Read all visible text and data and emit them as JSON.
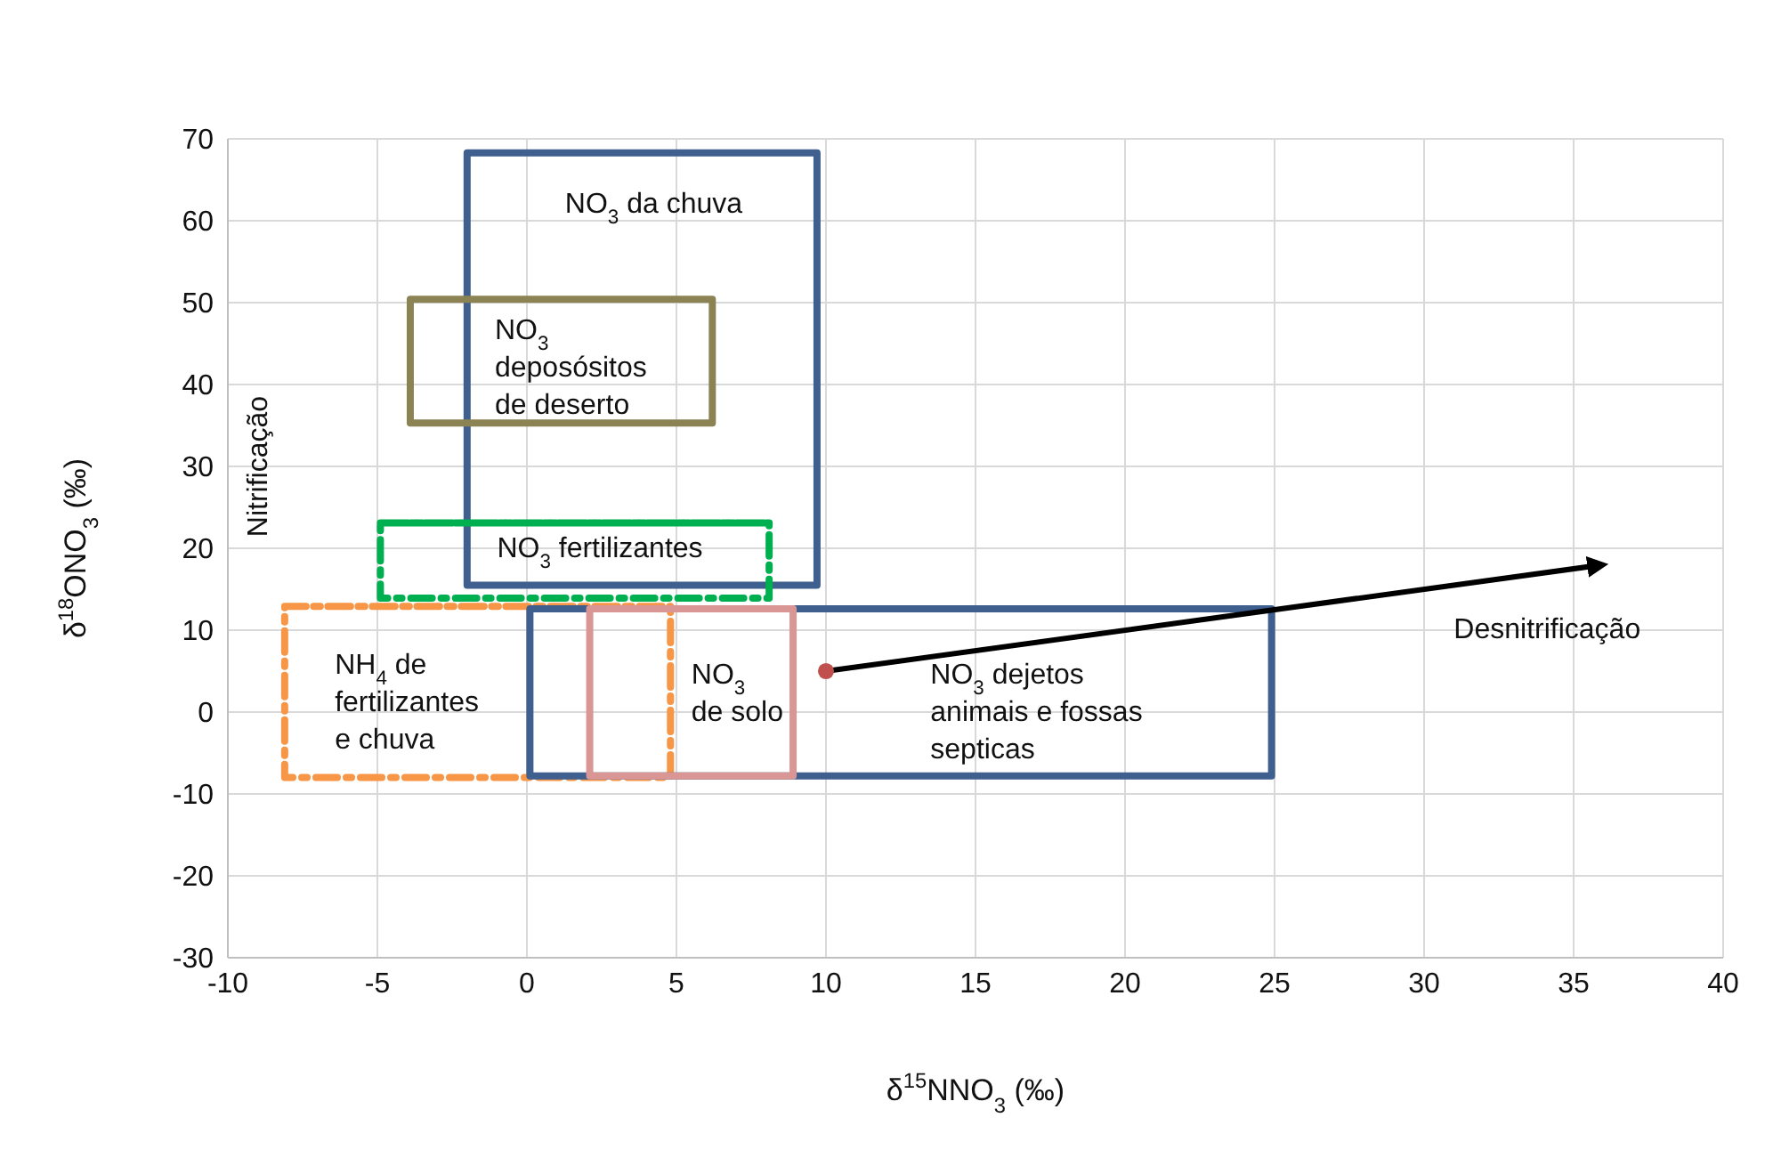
{
  "chart_data": {
    "type": "line",
    "xlabel": "δ$^{15}$NNO$_{3}$ (‰)",
    "ylabel": "δ$^{18}$ONO$_{3}$ (‰)",
    "xlim": [
      -10,
      40
    ],
    "xticks": [
      -10,
      -5,
      0,
      5,
      10,
      15,
      20,
      25,
      30,
      35,
      40
    ],
    "ylim": [
      -30,
      70
    ],
    "yticks": [
      -30,
      -20,
      -10,
      0,
      10,
      20,
      30,
      40,
      50,
      60,
      70
    ],
    "grid": true,
    "legend": false,
    "marker": "none",
    "series": [
      {
        "name": "NO$_{3}$ da chuva",
        "color": "#3f5f8f",
        "line_style": "solid",
        "x": [
          -2,
          9.7,
          9.7,
          -2,
          -2,
          9.7
        ],
        "values": [
          68.3,
          68.3,
          15.5,
          15.5,
          68.3,
          68.3
        ]
      },
      {
        "name": "NO$_{3}$\ndeposósitos\nde  deserto",
        "color": "#8c8354",
        "line_style": "solid",
        "x": [
          -3.9,
          6.2,
          6.2,
          -3.9,
          -3.9,
          6.2
        ],
        "values": [
          50.4,
          50.4,
          35.3,
          35.3,
          50.4,
          50.4
        ]
      },
      {
        "name": "NO$_{3}$ fertilizantes",
        "color": "#00b050",
        "line_style": "dashed",
        "x": [
          -4.9,
          8.1,
          8.1,
          -4.9,
          -4.9,
          8.1
        ],
        "values": [
          23.1,
          23.1,
          13.9,
          13.9,
          23.1,
          23.1
        ]
      },
      {
        "name": "NH$_{4}$ de\nfertilizantes\ne chuva",
        "color": "#f79646",
        "line_style": "dashed",
        "x": [
          -8.1,
          4.8,
          4.8,
          -8.1,
          -8.1,
          4.8
        ],
        "values": [
          12.9,
          12.9,
          -8,
          -8,
          12.9,
          12.9
        ]
      },
      {
        "name": "NO$_{3}$ dejetos\nanimais e fossas\nsepticas",
        "color": "#3f5f8f",
        "line_style": "solid",
        "x": [
          0.1,
          24.9,
          24.9,
          0.1,
          0.1,
          24.9
        ],
        "values": [
          12.6,
          12.6,
          -7.8,
          -7.8,
          12.6,
          12.6
        ]
      },
      {
        "name": "NO$_{3}$\nde solo",
        "color": "#d99694",
        "line_style": "solid",
        "x": [
          2.1,
          8.9,
          8.9,
          2.1,
          2.1,
          8.9
        ],
        "values": [
          12.6,
          12.6,
          -7.8,
          -7.8,
          12.6,
          12.6
        ]
      },
      {
        "name": "Desnitrificação",
        "color": "#000000",
        "line_style": "solid",
        "x": [
          10,
          35.6
        ],
        "values": [
          5,
          17.8
        ]
      },
      {
        "type": "scatter",
        "color": "#c0504d",
        "marker": "circle",
        "x": [
          10
        ],
        "values": [
          5
        ]
      }
    ],
    "annotations": [
      "Nitrificação"
    ]
  }
}
